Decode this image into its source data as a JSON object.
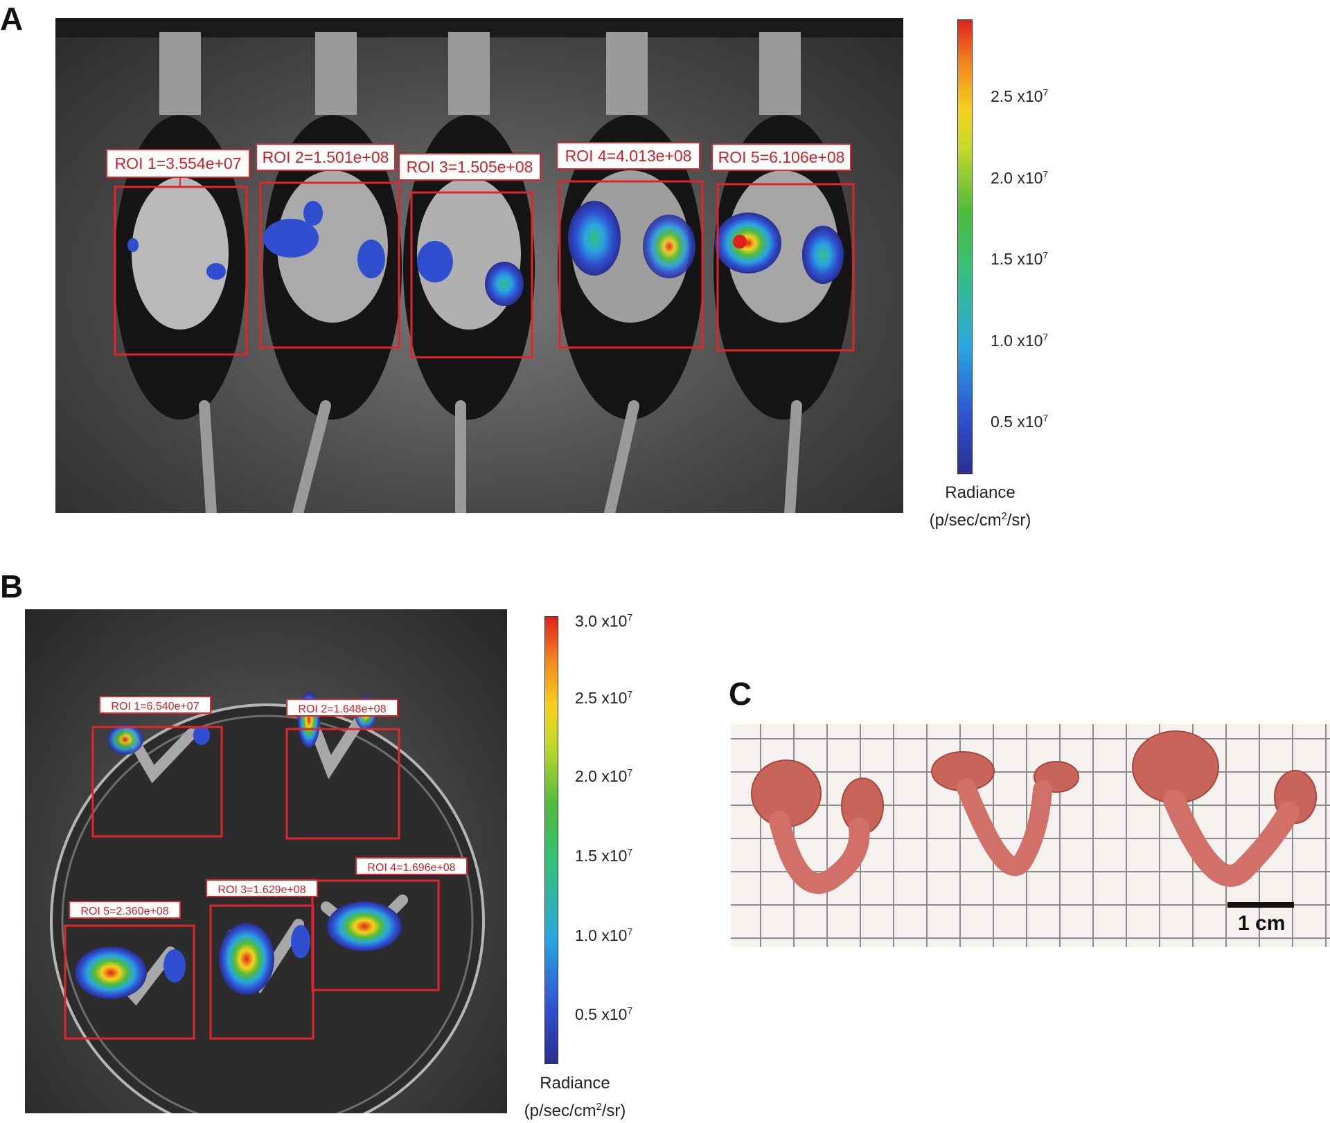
{
  "panels": {
    "a": {
      "letter": "A",
      "roi_labels": [
        "ROI 1=3.554e+07",
        "ROI 2=1.501e+08",
        "ROI 3=1.505e+08",
        "ROI 4=4.013e+08",
        "ROI 5=6.106e+08"
      ],
      "colorbar": {
        "ticks": [
          {
            "mant": "2.5",
            "exp": "7"
          },
          {
            "mant": "2.0",
            "exp": "7"
          },
          {
            "mant": "1.5",
            "exp": "7"
          },
          {
            "mant": "1.0",
            "exp": "7"
          },
          {
            "mant": "0.5",
            "exp": "7"
          }
        ],
        "times": "x10",
        "unit_line1": "Radiance",
        "unit_line2_pre": "(p/sec/cm",
        "unit_line2_sup": "2",
        "unit_line2_post": "/sr)"
      }
    },
    "b": {
      "letter": "B",
      "roi_labels": [
        "ROI 1=6.540e+07",
        "ROI 2=1.648e+08",
        "ROI 3=1.629e+08",
        "ROI 4=1.696e+08",
        "ROI 5=2.360e+08"
      ],
      "colorbar": {
        "ticks": [
          {
            "mant": "3.0",
            "exp": "7"
          },
          {
            "mant": "2.5",
            "exp": "7"
          },
          {
            "mant": "2.0",
            "exp": "7"
          },
          {
            "mant": "1.5",
            "exp": "7"
          },
          {
            "mant": "1.0",
            "exp": "7"
          },
          {
            "mant": "0.5",
            "exp": "7"
          }
        ],
        "times": "x10",
        "unit_line1": "Radiance",
        "unit_line2_pre": "(p/sec/cm",
        "unit_line2_sup": "2",
        "unit_line2_post": "/sr)"
      }
    },
    "c": {
      "letter": "C",
      "scale_label": "1 cm"
    }
  },
  "colors": {
    "roi_red": "#e0262b",
    "heat_low": "#2b2e8f",
    "heat_mid": "#35c07a",
    "heat_high": "#e0221d",
    "tissue": "#c9645a"
  }
}
